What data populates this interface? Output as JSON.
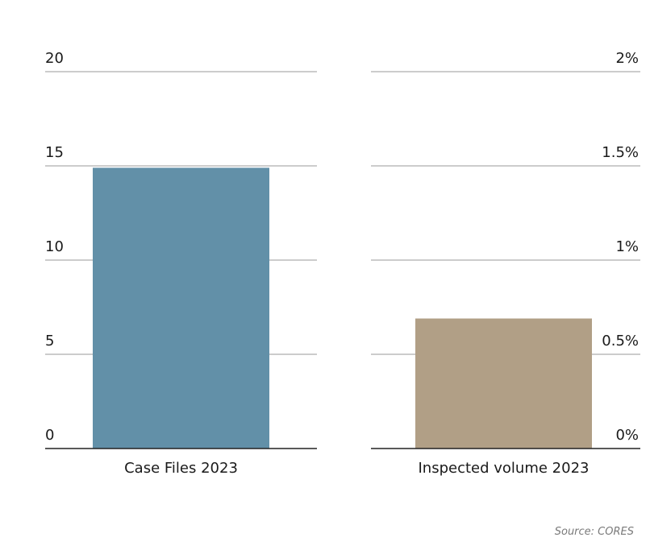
{
  "chart_data": [
    {
      "type": "bar",
      "categories": [
        "Case Files 2023"
      ],
      "values": [
        14.9
      ],
      "ylim": [
        0,
        20
      ],
      "yticks": [
        "0",
        "5",
        "10",
        "15",
        "20"
      ],
      "tick_values": [
        0,
        5,
        10,
        15,
        20
      ],
      "axis_side": "left",
      "grid": true,
      "color": "#6290a8"
    },
    {
      "type": "bar",
      "categories": [
        "Inspected volume 2023"
      ],
      "values": [
        0.69
      ],
      "ylim": [
        0,
        2
      ],
      "yticks": [
        "0%",
        "0.5%",
        "1%",
        "1.5%",
        "2%"
      ],
      "tick_values": [
        0,
        0.5,
        1,
        1.5,
        2
      ],
      "axis_side": "right",
      "grid": true,
      "color": "#b19f86"
    }
  ],
  "source": "Source: CORES"
}
